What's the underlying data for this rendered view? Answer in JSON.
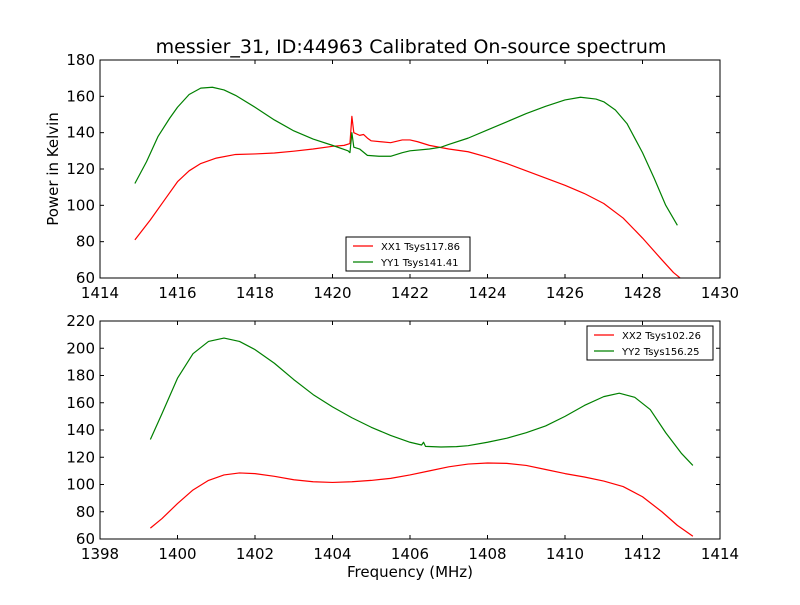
{
  "chart_data": [
    {
      "type": "line",
      "title": "messier_31, ID:44963 Calibrated On-source spectrum",
      "xlabel": "",
      "ylabel": "Power in Kelvin",
      "xlim": [
        1414,
        1430
      ],
      "ylim": [
        60,
        180
      ],
      "xticks": [
        "1414",
        "1416",
        "1418",
        "1420",
        "1422",
        "1424",
        "1426",
        "1428",
        "1430"
      ],
      "yticks": [
        "60",
        "80",
        "100",
        "120",
        "140",
        "160",
        "180"
      ],
      "legend_position": "lower-center",
      "series": [
        {
          "name": "XX1 Tsys117.86",
          "color": "#ff0000",
          "points": [
            [
              1414.9,
              81
            ],
            [
              1415.3,
              92
            ],
            [
              1415.7,
              104
            ],
            [
              1416.0,
              113
            ],
            [
              1416.3,
              119
            ],
            [
              1416.6,
              123
            ],
            [
              1417.0,
              126
            ],
            [
              1417.5,
              128
            ],
            [
              1418.0,
              128.3
            ],
            [
              1418.5,
              128.8
            ],
            [
              1419.0,
              129.8
            ],
            [
              1419.5,
              131
            ],
            [
              1420.0,
              132.5
            ],
            [
              1420.3,
              133
            ],
            [
              1420.45,
              134
            ],
            [
              1420.5,
              149
            ],
            [
              1420.55,
              140
            ],
            [
              1420.7,
              138.5
            ],
            [
              1420.8,
              139
            ],
            [
              1420.9,
              137
            ],
            [
              1421.0,
              135.5
            ],
            [
              1421.5,
              134.5
            ],
            [
              1421.8,
              136
            ],
            [
              1422.0,
              136
            ],
            [
              1422.2,
              135
            ],
            [
              1422.5,
              133
            ],
            [
              1423.0,
              131
            ],
            [
              1423.5,
              129.5
            ],
            [
              1424.0,
              126.5
            ],
            [
              1424.5,
              123
            ],
            [
              1425.0,
              119
            ],
            [
              1425.5,
              115
            ],
            [
              1426.0,
              111
            ],
            [
              1426.5,
              106.5
            ],
            [
              1427.0,
              101
            ],
            [
              1427.5,
              93
            ],
            [
              1428.0,
              82
            ],
            [
              1428.5,
              70
            ],
            [
              1428.8,
              63
            ],
            [
              1429.0,
              59.5
            ]
          ]
        },
        {
          "name": "YY1 Tsys141.41",
          "color": "#008000",
          "points": [
            [
              1414.9,
              112
            ],
            [
              1415.2,
              124
            ],
            [
              1415.5,
              138
            ],
            [
              1415.8,
              148
            ],
            [
              1416.0,
              154
            ],
            [
              1416.3,
              161
            ],
            [
              1416.6,
              164.5
            ],
            [
              1416.9,
              165
            ],
            [
              1417.2,
              163.5
            ],
            [
              1417.5,
              160.5
            ],
            [
              1418.0,
              154
            ],
            [
              1418.5,
              147
            ],
            [
              1419.0,
              141
            ],
            [
              1419.5,
              136.5
            ],
            [
              1420.0,
              133
            ],
            [
              1420.4,
              130
            ],
            [
              1420.45,
              129
            ],
            [
              1420.5,
              140
            ],
            [
              1420.55,
              132
            ],
            [
              1420.7,
              131
            ],
            [
              1420.9,
              127.5
            ],
            [
              1421.2,
              127
            ],
            [
              1421.5,
              127
            ],
            [
              1421.8,
              129
            ],
            [
              1422.0,
              130
            ],
            [
              1422.5,
              131
            ],
            [
              1422.8,
              132
            ],
            [
              1423.0,
              133.5
            ],
            [
              1423.5,
              137
            ],
            [
              1424.0,
              141.5
            ],
            [
              1424.5,
              146
            ],
            [
              1425.0,
              150.5
            ],
            [
              1425.5,
              154.5
            ],
            [
              1426.0,
              158
            ],
            [
              1426.4,
              159.5
            ],
            [
              1426.8,
              158.5
            ],
            [
              1427.0,
              157
            ],
            [
              1427.3,
              152.5
            ],
            [
              1427.6,
              145
            ],
            [
              1428.0,
              129
            ],
            [
              1428.3,
              115
            ],
            [
              1428.6,
              100
            ],
            [
              1428.9,
              89
            ]
          ]
        }
      ]
    },
    {
      "type": "line",
      "title": "",
      "xlabel": "Frequency (MHz)",
      "ylabel": "",
      "xlim": [
        1398,
        1414
      ],
      "ylim": [
        60,
        220
      ],
      "xticks": [
        "1398",
        "1400",
        "1402",
        "1404",
        "1406",
        "1408",
        "1410",
        "1412",
        "1414"
      ],
      "yticks": [
        "60",
        "80",
        "100",
        "120",
        "140",
        "160",
        "180",
        "200",
        "220"
      ],
      "legend_position": "upper-right",
      "series": [
        {
          "name": "XX2 Tsys102.26",
          "color": "#ff0000",
          "points": [
            [
              1399.3,
              68
            ],
            [
              1399.6,
              75
            ],
            [
              1400.0,
              86
            ],
            [
              1400.4,
              96
            ],
            [
              1400.8,
              103
            ],
            [
              1401.2,
              107
            ],
            [
              1401.6,
              108.5
            ],
            [
              1402.0,
              108
            ],
            [
              1402.5,
              106
            ],
            [
              1403.0,
              103.5
            ],
            [
              1403.5,
              102
            ],
            [
              1404.0,
              101.5
            ],
            [
              1404.5,
              102
            ],
            [
              1405.0,
              103
            ],
            [
              1405.5,
              104.5
            ],
            [
              1406.0,
              107
            ],
            [
              1406.5,
              110
            ],
            [
              1407.0,
              113
            ],
            [
              1407.5,
              115
            ],
            [
              1408.0,
              115.8
            ],
            [
              1408.5,
              115.5
            ],
            [
              1409.0,
              114
            ],
            [
              1409.5,
              111
            ],
            [
              1410.0,
              108
            ],
            [
              1410.5,
              105.5
            ],
            [
              1411.0,
              102.5
            ],
            [
              1411.5,
              98.5
            ],
            [
              1412.0,
              91
            ],
            [
              1412.5,
              80
            ],
            [
              1412.9,
              70
            ],
            [
              1413.3,
              62
            ]
          ]
        },
        {
          "name": "YY2 Tsys156.25",
          "color": "#008000",
          "points": [
            [
              1399.3,
              133
            ],
            [
              1399.6,
              152
            ],
            [
              1400.0,
              178
            ],
            [
              1400.4,
              196
            ],
            [
              1400.8,
              205
            ],
            [
              1401.2,
              207.5
            ],
            [
              1401.6,
              205
            ],
            [
              1402.0,
              199
            ],
            [
              1402.5,
              189
            ],
            [
              1403.0,
              177
            ],
            [
              1403.5,
              166
            ],
            [
              1404.0,
              157
            ],
            [
              1404.5,
              149
            ],
            [
              1405.0,
              142
            ],
            [
              1405.5,
              136
            ],
            [
              1406.0,
              131
            ],
            [
              1406.3,
              129
            ],
            [
              1406.35,
              131
            ],
            [
              1406.4,
              128
            ],
            [
              1406.8,
              127.5
            ],
            [
              1407.2,
              127.8
            ],
            [
              1407.5,
              128.5
            ],
            [
              1408.0,
              131
            ],
            [
              1408.5,
              134
            ],
            [
              1409.0,
              138
            ],
            [
              1409.5,
              143
            ],
            [
              1410.0,
              150
            ],
            [
              1410.5,
              158
            ],
            [
              1411.0,
              164.5
            ],
            [
              1411.4,
              167
            ],
            [
              1411.8,
              164
            ],
            [
              1412.2,
              155
            ],
            [
              1412.6,
              138
            ],
            [
              1413.0,
              123
            ],
            [
              1413.3,
              114
            ]
          ]
        }
      ]
    }
  ]
}
